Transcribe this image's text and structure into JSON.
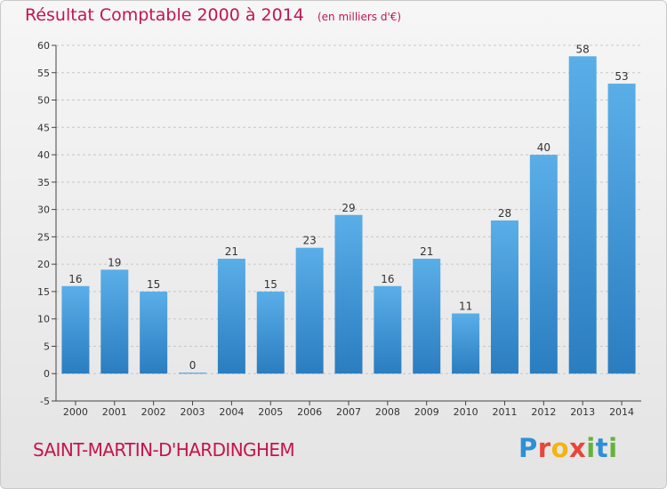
{
  "header": {
    "title": "Résultat Comptable 2000 à 2014",
    "subtitle": "(en milliers d'€)"
  },
  "footer": {
    "commune": "SAINT-MARTIN-D'HARDINGHEM",
    "logo_text": "Proxiti"
  },
  "colors": {
    "title": "#c4154c",
    "bar_light": "#5aaee8",
    "bar_dark": "#2a7dc0",
    "grid": "#c8c8c8",
    "axis": "#444444"
  },
  "chart_data": {
    "type": "bar",
    "title": "Résultat Comptable 2000 à 2014",
    "subtitle": "(en milliers d'€)",
    "xlabel": "",
    "ylabel": "",
    "categories": [
      "2000",
      "2001",
      "2002",
      "2003",
      "2004",
      "2005",
      "2006",
      "2007",
      "2008",
      "2009",
      "2010",
      "2011",
      "2012",
      "2013",
      "2014"
    ],
    "values": [
      16,
      19,
      15,
      0,
      21,
      15,
      23,
      29,
      16,
      21,
      11,
      28,
      40,
      58,
      53
    ],
    "data_labels": [
      "16",
      "19",
      "15",
      "0",
      "21",
      "15",
      "23",
      "29",
      "16",
      "21",
      "11",
      "28",
      "40",
      "58",
      "53"
    ],
    "ylim": [
      -5,
      60
    ],
    "yticks": [
      -5,
      0,
      5,
      10,
      15,
      20,
      25,
      30,
      35,
      40,
      45,
      50,
      55,
      60
    ],
    "ytick_labels": [
      "-5",
      "0",
      "5",
      "10",
      "15",
      "20",
      "25",
      "30",
      "35",
      "40",
      "45",
      "50",
      "55",
      "60"
    ],
    "grid": true,
    "legend": "none"
  }
}
